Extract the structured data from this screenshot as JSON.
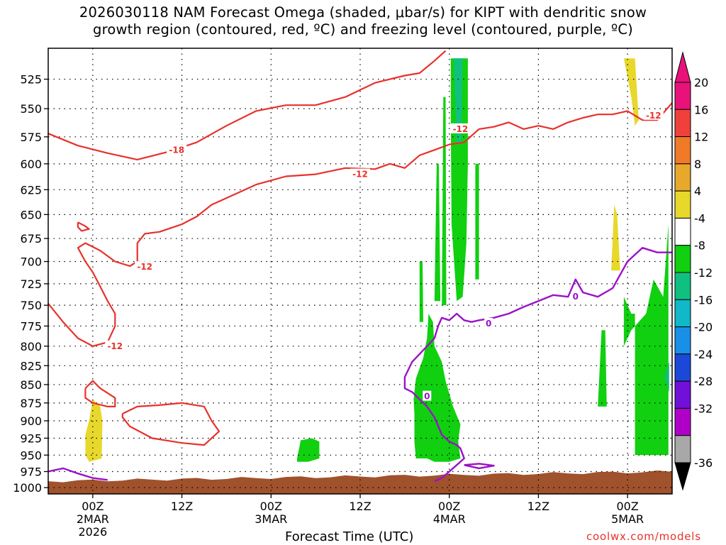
{
  "title": {
    "line1": "2026030118 NAM Forecast Omega (shaded, μbar/s) for KIPT with dendritic snow",
    "line2": "growth region (contoured, red, ºC) and freezing level (contoured, purple, ºC)"
  },
  "xlabel": "Forecast Time (UTC)",
  "credit": "coolwx.com/models",
  "chart_data": {
    "type": "heatmap",
    "title": "2026030118 NAM Forecast Omega (shaded, μbar/s) for KIPT with dendritic snow growth region (contoured, red, ºC) and freezing level (contoured, purple, ºC)",
    "xlabel": "Forecast Time (UTC)",
    "ylabel": "",
    "x_ticks": [
      {
        "hour": 6,
        "label": "00Z",
        "sub": [
          "2MAR",
          "2026"
        ]
      },
      {
        "hour": 18,
        "label": "12Z",
        "sub": []
      },
      {
        "hour": 30,
        "label": "00Z",
        "sub": [
          "3MAR"
        ]
      },
      {
        "hour": 42,
        "label": "12Z",
        "sub": []
      },
      {
        "hour": 54,
        "label": "00Z",
        "sub": [
          "4MAR"
        ]
      },
      {
        "hour": 66,
        "label": "12Z",
        "sub": []
      },
      {
        "hour": 78,
        "label": "00Z",
        "sub": [
          "5MAR"
        ]
      }
    ],
    "x_range_hours": [
      0,
      84
    ],
    "y_ticks": [
      525,
      550,
      575,
      600,
      625,
      650,
      675,
      700,
      725,
      750,
      775,
      800,
      825,
      850,
      875,
      900,
      925,
      950,
      975,
      1000
    ],
    "y_range_hPa": [
      500,
      1010
    ],
    "y_scale": "log-pressure",
    "grid": true,
    "colorbar": {
      "ticks": [
        20,
        16,
        12,
        8,
        4,
        -4,
        -8,
        -12,
        -16,
        -20,
        -24,
        -28,
        -32,
        -36
      ],
      "bins": [
        {
          "from": 20,
          "to": 24,
          "color": "#e8127a"
        },
        {
          "from": 16,
          "to": 20,
          "color": "#f0403c"
        },
        {
          "from": 12,
          "to": 16,
          "color": "#f07a28"
        },
        {
          "from": 8,
          "to": 12,
          "color": "#e8a82c"
        },
        {
          "from": 4,
          "to": 8,
          "color": "#e8d82c"
        },
        {
          "from": -4,
          "to": 4,
          "color": "#ffffff"
        },
        {
          "from": -8,
          "to": -4,
          "color": "#10d010"
        },
        {
          "from": -12,
          "to": -8,
          "color": "#10c080"
        },
        {
          "from": -16,
          "to": -12,
          "color": "#10b8c8"
        },
        {
          "from": -20,
          "to": -16,
          "color": "#1890e8"
        },
        {
          "from": -24,
          "to": -20,
          "color": "#1c48d8"
        },
        {
          "from": -28,
          "to": -24,
          "color": "#7010d8"
        },
        {
          "from": -32,
          "to": -28,
          "color": "#b000c8"
        },
        {
          "from": -36,
          "to": -32,
          "color": "#a8a8a8"
        }
      ],
      "over_color": "#e8127a",
      "under_color": "#000000"
    },
    "omega_regions": [
      {
        "level": "-4 to -8",
        "color": "#10d010",
        "polygon": [
          [
            49.5,
            842
          ],
          [
            50.5,
            815
          ],
          [
            51.0,
            790
          ],
          [
            51.2,
            760
          ],
          [
            51.8,
            770
          ],
          [
            52.0,
            800
          ],
          [
            53.0,
            820
          ],
          [
            53.5,
            845
          ],
          [
            54.5,
            880
          ],
          [
            55.5,
            905
          ],
          [
            55.2,
            930
          ],
          [
            55.5,
            955
          ],
          [
            54.0,
            960
          ],
          [
            52.0,
            960
          ],
          [
            51.0,
            955
          ],
          [
            49.5,
            955
          ],
          [
            49.3,
            930
          ],
          [
            49.3,
            890
          ],
          [
            49.2,
            870
          ]
        ]
      },
      {
        "level": "-4 to -8",
        "color": "#10d010",
        "polygon": [
          [
            50.0,
            770
          ],
          [
            50.0,
            700
          ],
          [
            50.4,
            700
          ],
          [
            50.5,
            770
          ]
        ]
      },
      {
        "level": "-4 to -8",
        "color": "#10d010",
        "polygon": [
          [
            52.0,
            745
          ],
          [
            52.3,
            600
          ],
          [
            52.6,
            600
          ],
          [
            52.8,
            745
          ]
        ]
      },
      {
        "level": "-4 to -8",
        "color": "#10d010",
        "polygon": [
          [
            53.0,
            750
          ],
          [
            53.2,
            540
          ],
          [
            53.5,
            540
          ],
          [
            53.6,
            750
          ]
        ]
      },
      {
        "level": "-4 to -8",
        "color": "#10d010",
        "polygon": [
          [
            54.2,
            508
          ],
          [
            56.5,
            508
          ],
          [
            56.5,
            600
          ],
          [
            56.3,
            680
          ],
          [
            55.8,
            740
          ],
          [
            55.0,
            745
          ],
          [
            54.3,
            660
          ],
          [
            54.2,
            560
          ]
        ]
      },
      {
        "level": "-4 to -8",
        "color": "#10d010",
        "polygon": [
          [
            57.5,
            600
          ],
          [
            58.0,
            600
          ],
          [
            58.0,
            720
          ],
          [
            57.5,
            720
          ]
        ]
      },
      {
        "level": "-4 to -8",
        "color": "#10d010",
        "polygon": [
          [
            33.5,
            955
          ],
          [
            34.0,
            928
          ],
          [
            35.5,
            925
          ],
          [
            36.5,
            930
          ],
          [
            36.5,
            955
          ],
          [
            35.0,
            960
          ],
          [
            33.5,
            960
          ]
        ]
      },
      {
        "level": "-4 to -8",
        "color": "#10d010",
        "polygon": [
          [
            77.5,
            740
          ],
          [
            78.5,
            760
          ],
          [
            79.0,
            760
          ],
          [
            79.0,
            950
          ],
          [
            83.5,
            950
          ],
          [
            83.5,
            660
          ],
          [
            82.8,
            740
          ],
          [
            81.5,
            720
          ],
          [
            80.5,
            760
          ],
          [
            78.5,
            780
          ],
          [
            77.5,
            800
          ]
        ]
      },
      {
        "level": "-4 to -8",
        "color": "#10d010",
        "polygon": [
          [
            74.0,
            880
          ],
          [
            74.5,
            780
          ],
          [
            75.0,
            780
          ],
          [
            75.2,
            880
          ]
        ]
      },
      {
        "level": "-8 to -12",
        "color": "#10c080",
        "polygon": [
          [
            54.6,
            508
          ],
          [
            55.8,
            508
          ],
          [
            55.6,
            580
          ],
          [
            55.0,
            580
          ]
        ]
      },
      {
        "level": "-8 to -12",
        "color": "#10c080",
        "polygon": [
          [
            83.0,
            840
          ],
          [
            83.6,
            820
          ],
          [
            83.6,
            860
          ]
        ]
      },
      {
        "level": "4 to 8",
        "color": "#e8d82c",
        "polygon": [
          [
            5.0,
            950
          ],
          [
            5.0,
            920
          ],
          [
            5.5,
            900
          ],
          [
            6.0,
            870
          ],
          [
            7.0,
            880
          ],
          [
            7.3,
            900
          ],
          [
            7.2,
            955
          ],
          [
            5.5,
            960
          ]
        ]
      },
      {
        "level": "4 to 8",
        "color": "#e8d82c",
        "polygon": [
          [
            75.8,
            710
          ],
          [
            76.2,
            640
          ],
          [
            76.6,
            650
          ],
          [
            77.0,
            710
          ]
        ]
      },
      {
        "level": "4 to 8",
        "color": "#e8d82c",
        "polygon": [
          [
            77.5,
            508
          ],
          [
            79.0,
            508
          ],
          [
            79.5,
            560
          ],
          [
            79.0,
            565
          ],
          [
            78.5,
            540
          ]
        ]
      }
    ],
    "dgz_contours_red": [
      {
        "label": "-18",
        "points": [
          [
            0,
            572
          ],
          [
            4,
            583
          ],
          [
            8,
            590
          ],
          [
            12,
            596
          ],
          [
            16,
            589
          ],
          [
            20,
            580
          ],
          [
            24,
            565
          ],
          [
            28,
            552
          ],
          [
            32,
            547
          ],
          [
            36,
            547
          ],
          [
            40,
            540
          ],
          [
            44,
            528
          ],
          [
            48,
            522
          ],
          [
            50,
            520
          ],
          [
            52,
            510
          ],
          [
            53.5,
            502
          ]
        ]
      },
      {
        "label": "-12",
        "points": [
          [
            0,
            748
          ],
          [
            2,
            770
          ],
          [
            4,
            790
          ],
          [
            6,
            800
          ],
          [
            8,
            795
          ],
          [
            9,
            775
          ],
          [
            9,
            760
          ],
          [
            8,
            745
          ],
          [
            7,
            728
          ],
          [
            6,
            712
          ],
          [
            5,
            700
          ],
          [
            4,
            685
          ],
          [
            5,
            680
          ],
          [
            7,
            688
          ],
          [
            9,
            700
          ],
          [
            11,
            705
          ],
          [
            12,
            700
          ],
          [
            12,
            680
          ],
          [
            13,
            670
          ],
          [
            15,
            668
          ],
          [
            18,
            660
          ],
          [
            20,
            652
          ],
          [
            22,
            640
          ],
          [
            25,
            630
          ],
          [
            28,
            620
          ],
          [
            32,
            612
          ],
          [
            36,
            610
          ],
          [
            40,
            604
          ],
          [
            44,
            605
          ],
          [
            46,
            600
          ],
          [
            48,
            604
          ],
          [
            50,
            592
          ],
          [
            52,
            587
          ],
          [
            54,
            582
          ],
          [
            56,
            580
          ],
          [
            58,
            568
          ],
          [
            60,
            566
          ],
          [
            62,
            562
          ],
          [
            64,
            568
          ],
          [
            66,
            565
          ],
          [
            68,
            568
          ],
          [
            70,
            562
          ],
          [
            72,
            558
          ],
          [
            74,
            555
          ],
          [
            76,
            555
          ],
          [
            78,
            552
          ],
          [
            80,
            560
          ],
          [
            82,
            560
          ],
          [
            84,
            545
          ]
        ]
      },
      {
        "label": "",
        "points": [
          [
            4,
            658
          ],
          [
            5,
            662
          ],
          [
            5.5,
            665
          ],
          [
            4.5,
            667
          ],
          [
            4,
            663
          ],
          [
            4,
            658
          ]
        ]
      },
      {
        "label": "",
        "points": [
          [
            5,
            855
          ],
          [
            6,
            845
          ],
          [
            7,
            855
          ],
          [
            9,
            868
          ],
          [
            9,
            880
          ],
          [
            8,
            880
          ],
          [
            6,
            875
          ],
          [
            5,
            868
          ],
          [
            5,
            855
          ]
        ]
      },
      {
        "label": "",
        "points": [
          [
            10,
            890
          ],
          [
            12,
            880
          ],
          [
            15,
            878
          ],
          [
            18,
            875
          ],
          [
            21,
            880
          ],
          [
            22,
            900
          ],
          [
            23,
            915
          ],
          [
            21,
            935
          ],
          [
            18,
            932
          ],
          [
            14,
            925
          ],
          [
            11,
            908
          ],
          [
            10,
            895
          ],
          [
            10,
            890
          ]
        ]
      }
    ],
    "freezing_contours_purple": [
      {
        "label": "0",
        "points": [
          [
            0,
            975
          ],
          [
            2,
            970
          ],
          [
            4,
            978
          ],
          [
            6,
            985
          ],
          [
            8,
            988
          ]
        ]
      },
      {
        "label": "0",
        "points": [
          [
            52,
            990
          ],
          [
            53,
            985
          ],
          [
            54,
            975
          ],
          [
            55,
            965
          ],
          [
            56,
            955
          ],
          [
            55.5,
            940
          ],
          [
            55,
            935
          ],
          [
            54,
            930
          ],
          [
            53,
            920
          ],
          [
            52,
            895
          ],
          [
            51,
            880
          ],
          [
            50,
            870
          ],
          [
            49,
            860
          ],
          [
            48,
            855
          ],
          [
            48,
            840
          ],
          [
            49,
            820
          ],
          [
            50,
            810
          ],
          [
            51,
            800
          ],
          [
            52,
            790
          ],
          [
            52.5,
            775
          ],
          [
            53,
            765
          ],
          [
            54,
            768
          ],
          [
            55,
            760
          ],
          [
            56,
            768
          ],
          [
            57,
            770
          ],
          [
            58,
            768
          ],
          [
            60,
            765
          ],
          [
            62,
            760
          ],
          [
            64,
            752
          ],
          [
            66,
            745
          ],
          [
            68,
            738
          ],
          [
            70,
            740
          ],
          [
            71,
            720
          ],
          [
            72,
            735
          ],
          [
            74,
            740
          ],
          [
            76,
            730
          ],
          [
            78,
            700
          ],
          [
            80,
            685
          ],
          [
            82,
            690
          ],
          [
            84,
            690
          ]
        ]
      },
      {
        "label": "",
        "points": [
          [
            56,
            965
          ],
          [
            58,
            963
          ],
          [
            60,
            966
          ],
          [
            58,
            970
          ],
          [
            56,
            965
          ]
        ]
      }
    ],
    "contour_labels": [
      {
        "text": "-18",
        "color": "#e8312b",
        "hour": 17.3,
        "hPa": 587
      },
      {
        "text": "-12",
        "color": "#e8312b",
        "hour": 55.5,
        "hPa": 568
      },
      {
        "text": "-12",
        "color": "#e8312b",
        "hour": 81.5,
        "hPa": 556
      },
      {
        "text": "-12",
        "color": "#e8312b",
        "hour": 42.0,
        "hPa": 610
      },
      {
        "text": "-12",
        "color": "#e8312b",
        "hour": 13.0,
        "hPa": 706
      },
      {
        "text": "-12",
        "color": "#e8312b",
        "hour": 9.0,
        "hPa": 800
      },
      {
        "text": "0",
        "color": "#9b12c8",
        "hour": 71.0,
        "hPa": 740
      },
      {
        "text": "0",
        "color": "#9b12c8",
        "hour": 59.3,
        "hPa": 772
      },
      {
        "text": "0",
        "color": "#9b12c8",
        "hour": 51.0,
        "hPa": 866
      }
    ],
    "ground_color": "#a0522d"
  }
}
